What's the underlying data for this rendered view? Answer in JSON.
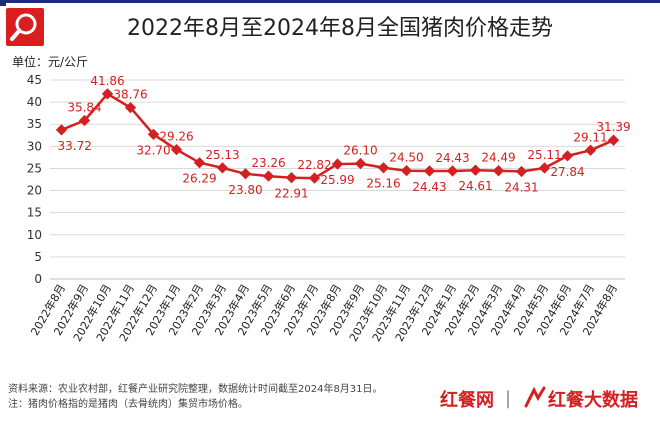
{
  "chart_data": {
    "type": "line",
    "title": "2022年8月至2024年8月全国猪肉价格走势",
    "ylabel": "单位：元/公斤",
    "ylim": [
      0,
      45
    ],
    "yticks": [
      0,
      5,
      10,
      15,
      20,
      25,
      30,
      35,
      40,
      45
    ],
    "grid": true,
    "categories": [
      "2022年8月",
      "2022年9月",
      "2022年10月",
      "2022年11月",
      "2022年12月",
      "2023年1月",
      "2023年2月",
      "2023年3月",
      "2023年4月",
      "2023年5月",
      "2023年6月",
      "2023年7月",
      "2023年8月",
      "2023年9月",
      "2023年10月",
      "2023年11月",
      "2023年12月",
      "2024年1月",
      "2024年2月",
      "2024年3月",
      "2024年4月",
      "2024年5月",
      "2024年6月",
      "2024年7月",
      "2024年8月"
    ],
    "values": [
      33.72,
      35.84,
      41.86,
      38.76,
      32.7,
      29.26,
      26.29,
      25.13,
      23.8,
      23.26,
      22.91,
      22.82,
      25.99,
      26.1,
      25.16,
      24.5,
      24.43,
      24.43,
      24.61,
      24.49,
      24.31,
      25.11,
      27.84,
      29.11,
      31.39
    ],
    "labels": [
      "33.72",
      "35.84",
      "41.86",
      "38.76",
      "32.70",
      "29.26",
      "26.29",
      "25.13",
      "23.80",
      "23.26",
      "22.91",
      "22.82",
      "25.99",
      "26.10",
      "25.16",
      "24.50",
      "24.43",
      "24.43",
      "24.61",
      "24.49",
      "24.31",
      "25.11",
      "27.84",
      "29.11",
      "31.39"
    ],
    "label_position": [
      "below",
      "above",
      "above",
      "above",
      "below",
      "above",
      "below",
      "above",
      "below",
      "above",
      "below",
      "above",
      "below",
      "above",
      "below",
      "above",
      "below",
      "above",
      "below",
      "above",
      "below",
      "above",
      "below",
      "above",
      "above"
    ],
    "series_color": "#d42020"
  },
  "notes": {
    "source": "资料来源：农业农村部，红餐产业研究院整理，数据统计时间截至2024年8月31日。",
    "note": "注：猪肉价格指的是猪肉（去骨统肉）集贸市场价格。"
  },
  "brand": {
    "name1": "红餐网",
    "name2": "红餐大数据",
    "watermark": "红餐产业研究院"
  },
  "colors": {
    "accent": "#d42020",
    "header": "#1e2a7a"
  }
}
